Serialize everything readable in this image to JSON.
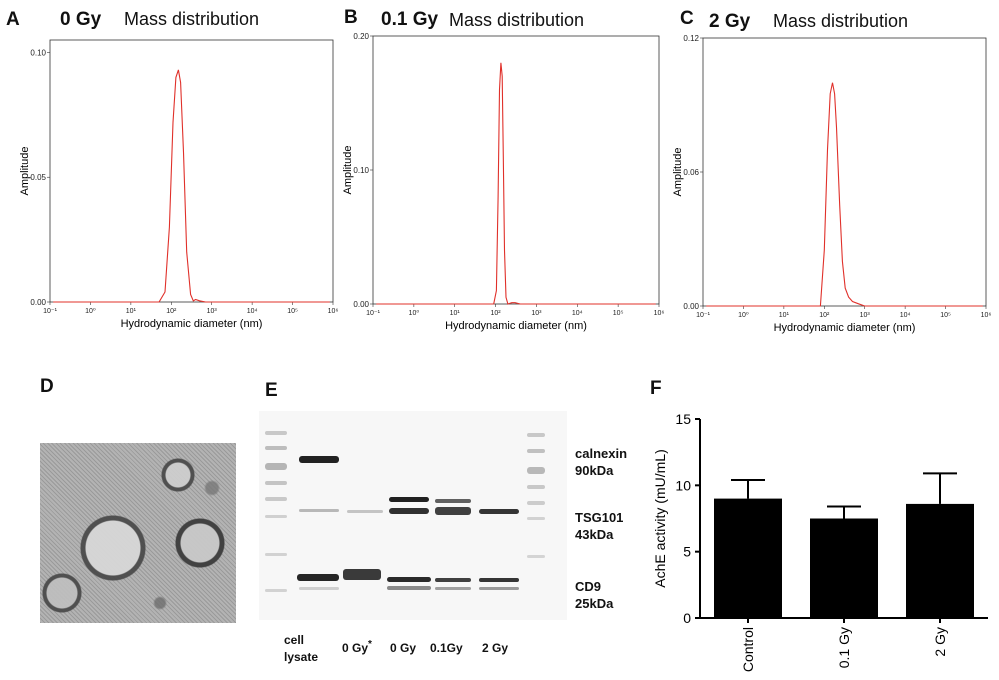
{
  "panels": {
    "A": {
      "letter": "A",
      "dose": "0 Gy",
      "title": "Mass distribution"
    },
    "B": {
      "letter": "B",
      "dose": "0.1 Gy",
      "title": "Mass distribution"
    },
    "C": {
      "letter": "C",
      "dose": "2 Gy",
      "title": "Mass distribution"
    },
    "D": {
      "letter": "D"
    },
    "E": {
      "letter": "E",
      "lanes": [
        "cell\nlysate",
        "0 Gy",
        "0 Gy",
        "0.1Gy",
        "2 Gy"
      ],
      "lane_1_mark": "*",
      "markers": [
        {
          "name": "calnexin",
          "size": "90kDa"
        },
        {
          "name": "TSG101",
          "size": "43kDa"
        },
        {
          "name": "CD9",
          "size": "25kDa"
        }
      ]
    },
    "F": {
      "letter": "F"
    }
  },
  "chart_data": [
    {
      "type": "line",
      "panel": "A",
      "title": "Mass distribution",
      "xlabel": "Hydrodynamic diameter (nm)",
      "ylabel": "Amplitude",
      "x_scale": "log",
      "xlim": [
        0.1,
        1000000
      ],
      "x_ticks": [
        "10⁻¹",
        "10⁰",
        "10¹",
        "10²",
        "10³",
        "10⁴",
        "10⁵",
        "10⁶"
      ],
      "ylim": [
        0,
        0.105
      ],
      "y_ticks": [
        "0.00",
        "0.05",
        "0.10"
      ],
      "y_tick_values": [
        0,
        0.05,
        0.1
      ],
      "color": "#e0302a",
      "series": [
        {
          "x": [
            50,
            70,
            90,
            110,
            130,
            150,
            170,
            200,
            240,
            300,
            350,
            400,
            500,
            700
          ],
          "y": [
            0,
            0.004,
            0.03,
            0.072,
            0.09,
            0.093,
            0.088,
            0.06,
            0.02,
            0.003,
            0.0005,
            0.001,
            0.0005,
            0
          ]
        }
      ]
    },
    {
      "type": "line",
      "panel": "B",
      "title": "Mass distribution",
      "xlabel": "Hydrodynamic diameter (nm)",
      "ylabel": "Amplitude",
      "x_scale": "log",
      "xlim": [
        0.1,
        1000000
      ],
      "x_ticks": [
        "10⁻¹",
        "10⁰",
        "10¹",
        "10²",
        "10³",
        "10⁴",
        "10⁵",
        "10⁶"
      ],
      "ylim": [
        0,
        0.2
      ],
      "y_ticks": [
        "0.00",
        "0.10",
        "0.20"
      ],
      "y_tick_values": [
        0,
        0.1,
        0.2
      ],
      "color": "#e0302a",
      "series": [
        {
          "x": [
            90,
            105,
            115,
            125,
            135,
            145,
            155,
            165,
            180,
            200,
            250,
            300,
            400
          ],
          "y": [
            0,
            0.01,
            0.08,
            0.16,
            0.18,
            0.17,
            0.11,
            0.04,
            0.005,
            0,
            0.001,
            0.001,
            0
          ]
        }
      ]
    },
    {
      "type": "line",
      "panel": "C",
      "title": "Mass distribution",
      "xlabel": "Hydrodynamic diameter (nm)",
      "ylabel": "Amplitude",
      "x_scale": "log",
      "xlim": [
        0.1,
        1000000
      ],
      "x_ticks": [
        "10⁻¹",
        "10⁰",
        "10¹",
        "10²",
        "10³",
        "10⁴",
        "10⁵",
        "10⁶"
      ],
      "ylim": [
        0,
        0.12
      ],
      "y_ticks": [
        "0.00",
        "0.06",
        "0.12"
      ],
      "y_tick_values": [
        0,
        0.06,
        0.12
      ],
      "color": "#e0302a",
      "series": [
        {
          "x": [
            80,
            100,
            120,
            140,
            160,
            180,
            200,
            240,
            280,
            330,
            400,
            500,
            700,
            1000
          ],
          "y": [
            0,
            0.025,
            0.07,
            0.095,
            0.1,
            0.095,
            0.08,
            0.045,
            0.02,
            0.008,
            0.004,
            0.002,
            0.001,
            0
          ]
        }
      ]
    },
    {
      "type": "bar",
      "panel": "F",
      "categories": [
        "Control",
        "0.1 Gy",
        "2 Gy"
      ],
      "values": [
        9.0,
        7.5,
        8.6
      ],
      "errors": [
        1.4,
        0.9,
        2.3
      ],
      "ylabel": "AchE activity (mU/mL)",
      "ylim": [
        0,
        15
      ],
      "y_ticks": [
        "0",
        "5",
        "10",
        "15"
      ],
      "y_tick_values": [
        0,
        5,
        10,
        15
      ],
      "bar_color": "#000000"
    }
  ]
}
